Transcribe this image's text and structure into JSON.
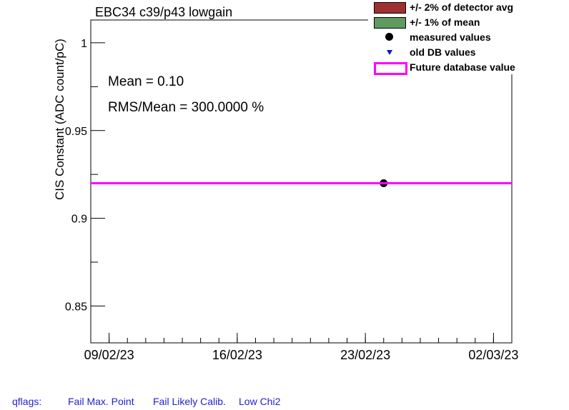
{
  "title": "EBC34 c39/p43 lowgain",
  "stats": {
    "mean": "Mean = 0.10",
    "rms": "RMS/Mean = 300.0000 %"
  },
  "legend": [
    {
      "label": "+/- 2% of detector avg",
      "symbol": "box",
      "color": "#a0302f"
    },
    {
      "label": "+/- 1% of mean",
      "symbol": "box",
      "color": "#5f9a60"
    },
    {
      "label": "measured values",
      "symbol": "dot",
      "color": "#000000"
    },
    {
      "label": "old DB values",
      "symbol": "triangle",
      "color": "#1010d0"
    },
    {
      "label": "Future database value",
      "symbol": "line",
      "color": "#ff00ff"
    }
  ],
  "qflags": {
    "label": "qflags:",
    "items": [
      "Fail Max. Point",
      "Fail Likely Calib.",
      "Low Chi2"
    ]
  },
  "chart_data": {
    "type": "scatter",
    "title": "EBC34 c39/p43 lowgain",
    "xlabel": "",
    "ylabel": "CIS Constant (ADC count/pC)",
    "x_tick_labels": [
      "09/02/23",
      "16/02/23",
      "23/02/23",
      "02/03/23"
    ],
    "x_ticks": [
      "2023-02-09",
      "2023-02-16",
      "2023-02-23",
      "2023-03-02"
    ],
    "xlim": [
      "2023-02-08",
      "2023-03-03"
    ],
    "ylim": [
      0.829,
      1.013
    ],
    "y_ticks": [
      0.85,
      0.9,
      0.95,
      1.0
    ],
    "y_tick_labels": [
      "0.85",
      "0.9",
      "0.95",
      "1"
    ],
    "series": [
      {
        "name": "measured values",
        "points": [
          {
            "x": "2023-02-24",
            "y": 0.92
          }
        ]
      },
      {
        "name": "Future database value",
        "type": "hline",
        "y": 0.92
      }
    ]
  }
}
